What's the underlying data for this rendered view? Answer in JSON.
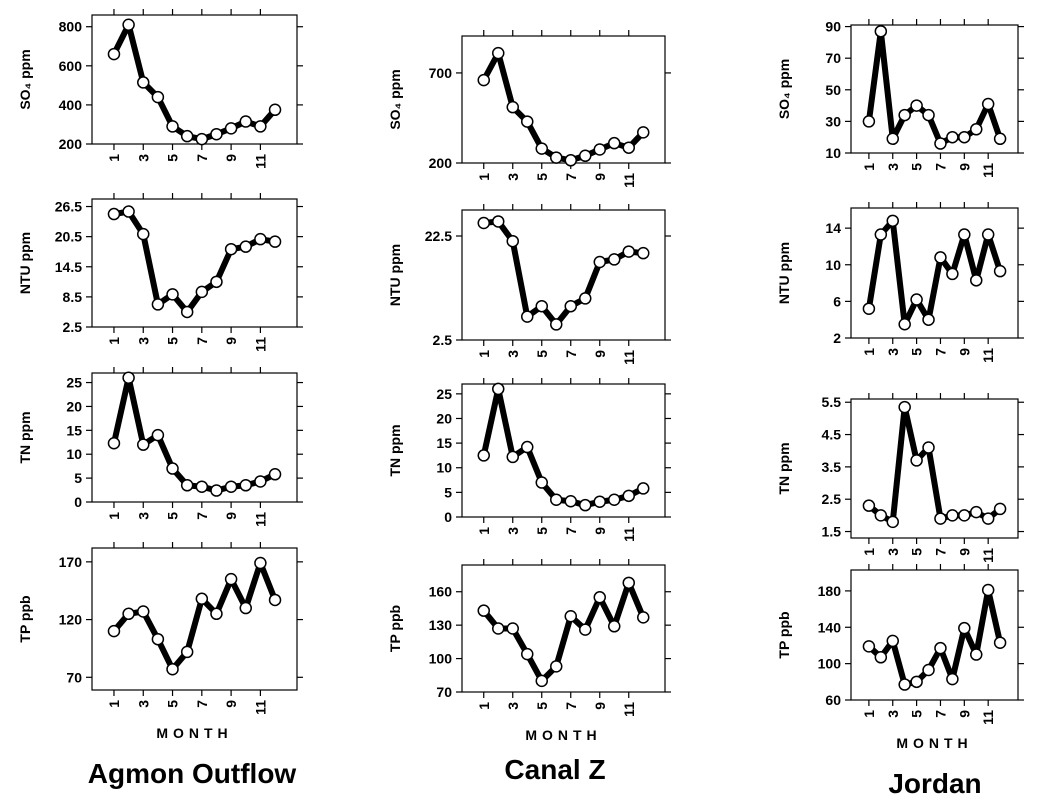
{
  "column_titles": [
    "Agmon Outflow",
    "Canal Z",
    "Jordan"
  ],
  "chart_data": [
    {
      "type": "line",
      "ylabel": "SO₄ ppm",
      "x": [
        1,
        2,
        3,
        4,
        5,
        6,
        7,
        8,
        9,
        10,
        11,
        12
      ],
      "xlim": [
        -0.5,
        13.5
      ],
      "xticks": [
        1,
        3,
        5,
        7,
        9,
        11
      ],
      "ylim": [
        200,
        860
      ],
      "yticks": [
        200,
        400,
        600,
        800
      ],
      "color": "#000000",
      "values": [
        660,
        810,
        515,
        440,
        290,
        240,
        225,
        250,
        280,
        315,
        290,
        375
      ]
    },
    {
      "type": "line",
      "ylabel": "NTU ppm",
      "x": [
        1,
        2,
        3,
        4,
        5,
        6,
        7,
        8,
        9,
        10,
        11,
        12
      ],
      "xlim": [
        -0.5,
        13.5
      ],
      "xticks": [
        1,
        3,
        5,
        7,
        9,
        11
      ],
      "ylim": [
        2.5,
        28
      ],
      "yticks": [
        2.5,
        8.5,
        14.5,
        20.5,
        26.5
      ],
      "color": "#000000",
      "values": [
        25,
        25.5,
        21,
        7,
        9,
        5.5,
        9.5,
        11.5,
        18,
        18.5,
        20,
        19.5
      ]
    },
    {
      "type": "line",
      "ylabel": "TN ppm",
      "x": [
        1,
        2,
        3,
        4,
        5,
        6,
        7,
        8,
        9,
        10,
        11,
        12
      ],
      "xlim": [
        -0.5,
        13.5
      ],
      "xticks": [
        1,
        3,
        5,
        7,
        9,
        11
      ],
      "ylim": [
        0,
        27
      ],
      "yticks": [
        0,
        5,
        10,
        15,
        20,
        25
      ],
      "color": "#000000",
      "values": [
        12.3,
        26,
        12,
        14,
        7,
        3.5,
        3.2,
        2.4,
        3.2,
        3.5,
        4.3,
        5.8
      ]
    },
    {
      "type": "line",
      "ylabel": "TP ppb",
      "xlabel": "MONTH",
      "x": [
        1,
        2,
        3,
        4,
        5,
        6,
        7,
        8,
        9,
        10,
        11,
        12
      ],
      "xlim": [
        -0.5,
        13.5
      ],
      "xticks": [
        1,
        3,
        5,
        7,
        9,
        11
      ],
      "ylim": [
        59,
        182
      ],
      "yticks": [
        70,
        120,
        170
      ],
      "color": "#000000",
      "values": [
        110,
        125,
        127,
        103,
        77,
        92,
        138,
        125,
        155,
        130,
        169,
        137
      ]
    },
    {
      "type": "line",
      "ylabel": "SO₄ ppm",
      "x": [
        1,
        2,
        3,
        4,
        5,
        6,
        7,
        8,
        9,
        10,
        11,
        12
      ],
      "xlim": [
        -0.5,
        13.5
      ],
      "xticks": [
        1,
        3,
        5,
        7,
        9,
        11
      ],
      "ylim": [
        200,
        905
      ],
      "yticks": [
        200,
        700
      ],
      "color": "#000000",
      "values": [
        660,
        810,
        510,
        430,
        280,
        230,
        215,
        240,
        275,
        310,
        285,
        370
      ]
    },
    {
      "type": "line",
      "ylabel": "NTU ppm",
      "x": [
        1,
        2,
        3,
        4,
        5,
        6,
        7,
        8,
        9,
        10,
        11,
        12
      ],
      "xlim": [
        -0.5,
        13.5
      ],
      "xticks": [
        1,
        3,
        5,
        7,
        9,
        11
      ],
      "ylim": [
        2.5,
        27.5
      ],
      "yticks": [
        2.5,
        22.5
      ],
      "color": "#000000",
      "values": [
        25,
        25.3,
        21.5,
        7,
        9,
        5.5,
        9,
        10.5,
        17.5,
        18,
        19.5,
        19.2
      ]
    },
    {
      "type": "line",
      "ylabel": "TN ppm",
      "x": [
        1,
        2,
        3,
        4,
        5,
        6,
        7,
        8,
        9,
        10,
        11,
        12
      ],
      "xlim": [
        -0.5,
        13.5
      ],
      "xticks": [
        1,
        3,
        5,
        7,
        9,
        11
      ],
      "ylim": [
        0,
        27
      ],
      "yticks": [
        0,
        5,
        10,
        15,
        20,
        25
      ],
      "color": "#000000",
      "values": [
        12.5,
        26,
        12.2,
        14.2,
        7,
        3.5,
        3.2,
        2.4,
        3.1,
        3.5,
        4.3,
        5.8
      ]
    },
    {
      "type": "line",
      "ylabel": "TP ppb",
      "xlabel": "MONTH",
      "x": [
        1,
        2,
        3,
        4,
        5,
        6,
        7,
        8,
        9,
        10,
        11,
        12
      ],
      "xlim": [
        -0.5,
        13.5
      ],
      "xticks": [
        1,
        3,
        5,
        7,
        9,
        11
      ],
      "ylim": [
        70,
        184
      ],
      "yticks": [
        70,
        100,
        130,
        160
      ],
      "color": "#000000",
      "values": [
        143,
        127,
        127,
        104,
        80,
        93,
        138,
        126,
        155,
        129,
        168,
        137
      ]
    },
    {
      "type": "line",
      "ylabel": "SO₄ ppm",
      "x": [
        1,
        2,
        3,
        4,
        5,
        6,
        7,
        8,
        9,
        10,
        11,
        12
      ],
      "xlim": [
        -0.5,
        13.5
      ],
      "xticks": [
        1,
        3,
        5,
        7,
        9,
        11
      ],
      "ylim": [
        10,
        91
      ],
      "yticks": [
        10,
        30,
        50,
        70,
        90
      ],
      "color": "#000000",
      "values": [
        30,
        87,
        19,
        34,
        40,
        34,
        16,
        20,
        20,
        25,
        41,
        19
      ]
    },
    {
      "type": "line",
      "ylabel": "NTU ppm",
      "x": [
        1,
        2,
        3,
        4,
        5,
        6,
        7,
        8,
        9,
        10,
        11,
        12
      ],
      "xlim": [
        -0.5,
        13.5
      ],
      "xticks": [
        1,
        3,
        5,
        7,
        9,
        11
      ],
      "ylim": [
        2,
        16.2
      ],
      "yticks": [
        2,
        6,
        10,
        14
      ],
      "color": "#000000",
      "values": [
        5.2,
        13.3,
        14.8,
        3.5,
        6.2,
        4,
        10.8,
        9,
        13.3,
        8.3,
        13.3,
        9.3
      ]
    },
    {
      "type": "line",
      "ylabel": "TN ppm",
      "x": [
        1,
        2,
        3,
        4,
        5,
        6,
        7,
        8,
        9,
        10,
        11,
        12
      ],
      "xlim": [
        -0.5,
        13.5
      ],
      "xticks": [
        1,
        3,
        5,
        7,
        9,
        11
      ],
      "ylim": [
        1.3,
        5.6
      ],
      "yticks": [
        1.5,
        2.5,
        3.5,
        4.5,
        5.5
      ],
      "color": "#000000",
      "values": [
        2.3,
        2.0,
        1.8,
        5.35,
        3.7,
        4.1,
        1.9,
        2.0,
        2.0,
        2.1,
        1.9,
        2.2
      ]
    },
    {
      "type": "line",
      "ylabel": "TP ppb",
      "xlabel": "MONTH",
      "x": [
        1,
        2,
        3,
        4,
        5,
        6,
        7,
        8,
        9,
        10,
        11,
        12
      ],
      "xlim": [
        -0.5,
        13.5
      ],
      "xticks": [
        1,
        3,
        5,
        7,
        9,
        11
      ],
      "ylim": [
        60,
        203
      ],
      "yticks": [
        60,
        100,
        140,
        180
      ],
      "color": "#000000",
      "values": [
        119,
        107,
        125,
        77,
        80,
        93,
        117,
        83,
        139,
        110,
        181,
        123
      ]
    }
  ]
}
